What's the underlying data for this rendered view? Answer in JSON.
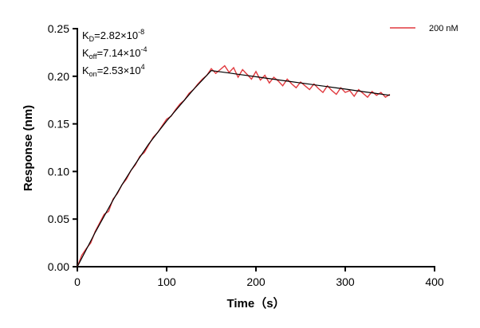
{
  "chart_data": {
    "type": "line",
    "xlabel": "Time（s）",
    "ylabel": "Response (nm)",
    "xlim": [
      0,
      400
    ],
    "ylim": [
      0,
      0.25
    ],
    "xticks": [
      "0",
      "100",
      "200",
      "300",
      "400"
    ],
    "yticks": [
      "0.00",
      "0.05",
      "0.10",
      "0.15",
      "0.20",
      "0.25"
    ],
    "grid": false,
    "legend_position": "top-right",
    "annotations": {
      "kd": {
        "base": "K",
        "sub": "D",
        "value": "=2.82×10",
        "exp": "-8"
      },
      "koff": {
        "base": "K",
        "sub": "off",
        "value": "=7.14×10",
        "exp": "-4"
      },
      "kon": {
        "base": "K",
        "sub": "on",
        "value": "=2.53×10",
        "exp": "4"
      }
    },
    "series": [
      {
        "name": "200 nM",
        "color": "#e0393e",
        "x_start": 0,
        "x_step": 5,
        "values": [
          0.0,
          0.012,
          0.019,
          0.025,
          0.037,
          0.046,
          0.055,
          0.058,
          0.071,
          0.077,
          0.086,
          0.092,
          0.101,
          0.107,
          0.116,
          0.12,
          0.128,
          0.136,
          0.141,
          0.148,
          0.155,
          0.158,
          0.165,
          0.171,
          0.175,
          0.182,
          0.186,
          0.192,
          0.197,
          0.201,
          0.208,
          0.203,
          0.207,
          0.211,
          0.204,
          0.209,
          0.199,
          0.207,
          0.202,
          0.197,
          0.205,
          0.196,
          0.201,
          0.193,
          0.199,
          0.195,
          0.19,
          0.197,
          0.192,
          0.188,
          0.194,
          0.19,
          0.186,
          0.192,
          0.187,
          0.183,
          0.19,
          0.185,
          0.181,
          0.188,
          0.183,
          0.185,
          0.179,
          0.186,
          0.182,
          0.178,
          0.184,
          0.18,
          0.183,
          0.178,
          0.181
        ]
      }
    ],
    "fit": {
      "color": "#000000",
      "x_start": 0,
      "x_step": 10,
      "values": [
        0,
        0.018,
        0.036,
        0.053,
        0.07,
        0.086,
        0.101,
        0.115,
        0.129,
        0.141,
        0.153,
        0.164,
        0.175,
        0.186,
        0.196,
        0.206,
        0.2047,
        0.2034,
        0.2021,
        0.2008,
        0.1995,
        0.1982,
        0.1969,
        0.1956,
        0.1943,
        0.193,
        0.1917,
        0.1904,
        0.1891,
        0.1878,
        0.1865,
        0.1852,
        0.1839,
        0.1826,
        0.1813,
        0.18
      ]
    }
  }
}
